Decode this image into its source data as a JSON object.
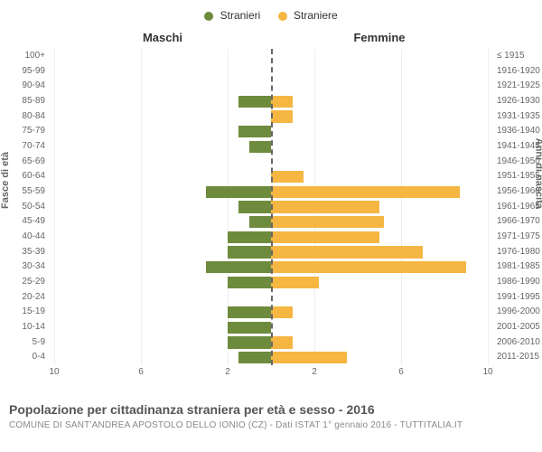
{
  "chart": {
    "type": "population-pyramid",
    "legend": [
      {
        "label": "Stranieri",
        "color": "#6e8b3d"
      },
      {
        "label": "Straniere",
        "color": "#f5b642"
      }
    ],
    "header_left": "Maschi",
    "header_right": "Femmine",
    "y_left_title": "Fasce di età",
    "y_right_title": "Anni di nascita",
    "xlim_left": 10,
    "xlim_right": 10,
    "x_ticks_left": [
      10,
      6,
      2
    ],
    "x_ticks_right": [
      2,
      6,
      10
    ],
    "bar_color_left": "#6e8b3d",
    "bar_color_right": "#f5b642",
    "background_color": "#ffffff",
    "grid_color": "#eeeeee",
    "centerline_color": "#666666",
    "label_fontsize": 10,
    "title_fontsize": 14,
    "rows": [
      {
        "age": "100+",
        "birth": "≤ 1915",
        "m": 0,
        "f": 0
      },
      {
        "age": "95-99",
        "birth": "1916-1920",
        "m": 0,
        "f": 0
      },
      {
        "age": "90-94",
        "birth": "1921-1925",
        "m": 0,
        "f": 0
      },
      {
        "age": "85-89",
        "birth": "1926-1930",
        "m": 1.5,
        "f": 1
      },
      {
        "age": "80-84",
        "birth": "1931-1935",
        "m": 0,
        "f": 1
      },
      {
        "age": "75-79",
        "birth": "1936-1940",
        "m": 1.5,
        "f": 0
      },
      {
        "age": "70-74",
        "birth": "1941-1945",
        "m": 1,
        "f": 0
      },
      {
        "age": "65-69",
        "birth": "1946-1950",
        "m": 0,
        "f": 0
      },
      {
        "age": "60-64",
        "birth": "1951-1955",
        "m": 0,
        "f": 1.5
      },
      {
        "age": "55-59",
        "birth": "1956-1960",
        "m": 3,
        "f": 8.7
      },
      {
        "age": "50-54",
        "birth": "1961-1965",
        "m": 1.5,
        "f": 5
      },
      {
        "age": "45-49",
        "birth": "1966-1970",
        "m": 1,
        "f": 5.2
      },
      {
        "age": "40-44",
        "birth": "1971-1975",
        "m": 2,
        "f": 5
      },
      {
        "age": "35-39",
        "birth": "1976-1980",
        "m": 2,
        "f": 7
      },
      {
        "age": "30-34",
        "birth": "1981-1985",
        "m": 3,
        "f": 9
      },
      {
        "age": "25-29",
        "birth": "1986-1990",
        "m": 2,
        "f": 2.2
      },
      {
        "age": "20-24",
        "birth": "1991-1995",
        "m": 0,
        "f": 0
      },
      {
        "age": "15-19",
        "birth": "1996-2000",
        "m": 2,
        "f": 1
      },
      {
        "age": "10-14",
        "birth": "2001-2005",
        "m": 2,
        "f": 0
      },
      {
        "age": "5-9",
        "birth": "2006-2010",
        "m": 2,
        "f": 1
      },
      {
        "age": "0-4",
        "birth": "2011-2015",
        "m": 1.5,
        "f": 3.5
      }
    ]
  },
  "title": "Popolazione per cittadinanza straniera per età e sesso - 2016",
  "subtitle": "COMUNE DI SANT'ANDREA APOSTOLO DELLO IONIO (CZ) - Dati ISTAT 1° gennaio 2016 - TUTTITALIA.IT"
}
